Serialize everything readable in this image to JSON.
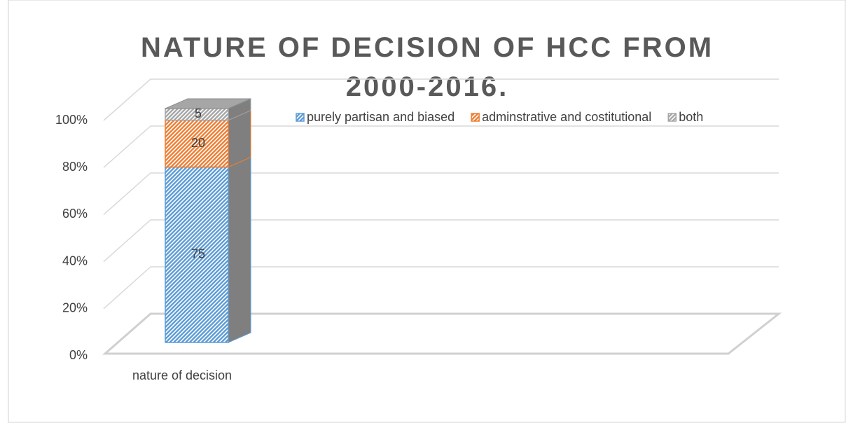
{
  "chart_data": {
    "type": "bar3d_stacked_percent",
    "title": "NATURE OF DECISION OF HCC FROM 2000-2016.",
    "categories": [
      "nature of decision"
    ],
    "series": [
      {
        "name": "purely partisan and biased",
        "color": "#5b9bd5",
        "values": [
          75
        ]
      },
      {
        "name": "adminstrative and costitutional",
        "color": "#ed7d31",
        "values": [
          20
        ]
      },
      {
        "name": "both",
        "color": "#a5a5a5",
        "values": [
          5
        ]
      }
    ],
    "ylim": [
      0,
      100
    ],
    "yticks": [
      {
        "value": 0,
        "label": "0%"
      },
      {
        "value": 20,
        "label": "20%"
      },
      {
        "value": 40,
        "label": "40%"
      },
      {
        "value": 60,
        "label": "60%"
      },
      {
        "value": 80,
        "label": "80%"
      },
      {
        "value": 100,
        "label": "100%"
      }
    ],
    "grid": true,
    "legend": "top"
  }
}
